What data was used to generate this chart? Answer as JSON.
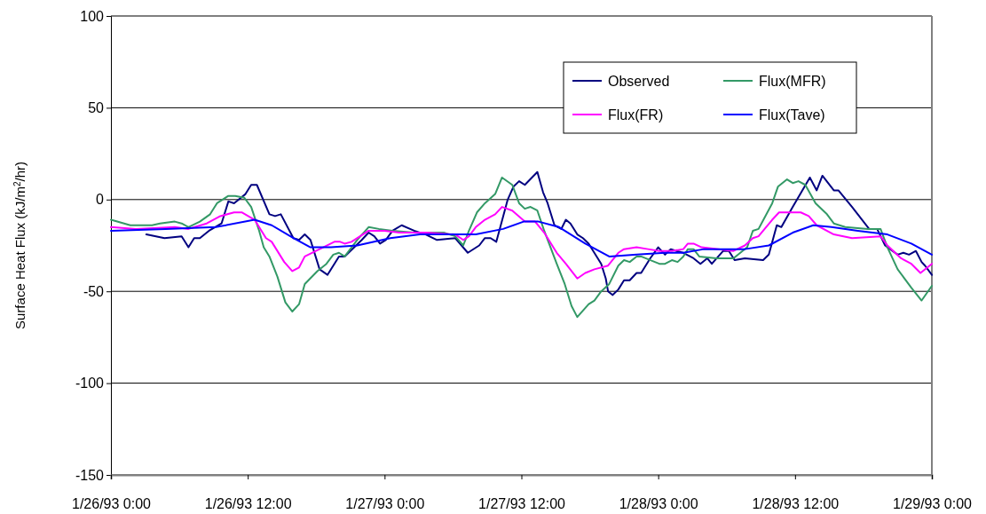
{
  "chart_data": {
    "type": "line",
    "ylabel": "Surface Heat Flux (kJ/m$^{2}$/hr)",
    "xlim": [
      "1993-01-26T00:00",
      "1993-01-29T00:00"
    ],
    "xticks": [
      {
        "value": "1993-01-26T00:00",
        "label": "1/26/93 0:00"
      },
      {
        "value": "1993-01-26T12:00",
        "label": "1/26/93 12:00"
      },
      {
        "value": "1993-01-27T00:00",
        "label": "1/27/93 0:00"
      },
      {
        "value": "1993-01-27T12:00",
        "label": "1/27/93 12:00"
      },
      {
        "value": "1993-01-28T00:00",
        "label": "1/28/93 0:00"
      },
      {
        "value": "1993-01-28T12:00",
        "label": "1/28/93 12:00"
      },
      {
        "value": "1993-01-29T00:00",
        "label": "1/29/93 0:00"
      }
    ],
    "ylim": [
      -150,
      100
    ],
    "yticks": [
      -150,
      -100,
      -50,
      0,
      50,
      100
    ],
    "grid": "y",
    "legend": "top right",
    "marker": "none",
    "line_style": "solid",
    "series": [
      {
        "name": "Observed",
        "color": "#000080",
        "x": [
          "1993-01-26T03:06",
          "1993-01-26T04:42",
          "1993-01-26T06:12",
          "1993-01-26T06:48",
          "1993-01-26T07:18",
          "1993-01-26T07:48",
          "1993-01-26T08:36",
          "1993-01-26T09:42",
          "1993-01-26T10:18",
          "1993-01-26T10:48",
          "1993-01-26T11:48",
          "1993-01-26T12:18",
          "1993-01-26T12:48",
          "1993-01-26T13:54",
          "1993-01-26T14:24",
          "1993-01-26T14:54",
          "1993-01-26T16:00",
          "1993-01-26T16:30",
          "1993-01-26T17:00",
          "1993-01-26T17:30",
          "1993-01-26T18:18",
          "1993-01-26T19:00",
          "1993-01-26T20:00",
          "1993-01-26T20:30",
          "1993-01-26T22:00",
          "1993-01-26T22:36",
          "1993-01-26T23:06",
          "1993-01-26T23:36",
          "1993-01-27T00:06",
          "1993-01-27T00:42",
          "1993-01-27T01:30",
          "1993-01-27T02:36",
          "1993-01-27T03:36",
          "1993-01-27T04:36",
          "1993-01-27T06:12",
          "1993-01-27T07:18",
          "1993-01-27T08:18",
          "1993-01-27T08:48",
          "1993-01-27T09:18",
          "1993-01-27T09:48",
          "1993-01-27T10:48",
          "1993-01-27T11:18",
          "1993-01-27T11:48",
          "1993-01-27T12:18",
          "1993-01-27T13:24",
          "1993-01-27T13:54",
          "1993-01-27T14:18",
          "1993-01-27T14:54",
          "1993-01-27T15:30",
          "1993-01-27T15:54",
          "1993-01-27T16:18",
          "1993-01-27T16:54",
          "1993-01-27T17:24",
          "1993-01-27T17:54",
          "1993-01-27T19:00",
          "1993-01-27T19:24",
          "1993-01-27T19:36",
          "1993-01-27T20:00",
          "1993-01-27T20:30",
          "1993-01-27T21:00",
          "1993-01-27T21:30",
          "1993-01-27T22:06",
          "1993-01-27T22:30",
          "1993-01-27T23:18",
          "1993-01-28T00:00",
          "1993-01-28T00:36",
          "1993-01-28T01:06",
          "1993-01-28T01:36",
          "1993-01-28T02:12",
          "1993-01-28T03:06",
          "1993-01-28T03:42",
          "1993-01-28T04:18",
          "1993-01-28T04:42",
          "1993-01-28T05:42",
          "1993-01-28T06:12",
          "1993-01-28T06:42",
          "1993-01-28T07:36",
          "1993-01-28T09:12",
          "1993-01-28T09:42",
          "1993-01-28T10:24",
          "1993-01-28T10:48",
          "1993-01-28T11:48",
          "1993-01-28T13:18",
          "1993-01-28T13:54",
          "1993-01-28T14:24",
          "1993-01-28T15:24",
          "1993-01-28T15:48",
          "1993-01-28T17:00",
          "1993-01-28T17:30",
          "1993-01-28T18:30",
          "1993-01-28T19:12",
          "1993-01-28T19:54",
          "1993-01-28T21:00",
          "1993-01-28T21:30",
          "1993-01-28T22:00",
          "1993-01-28T22:36",
          "1993-01-28T23:06",
          "1993-01-28T23:24",
          "1993-01-29T00:00"
        ],
        "values": [
          -19,
          -21,
          -20,
          -26,
          -21,
          -21,
          -17,
          -13,
          -1,
          -2,
          3,
          8,
          8,
          -8,
          -9,
          -8,
          -21,
          -22,
          -19,
          -22,
          -38,
          -41,
          -31,
          -31,
          -22,
          -18,
          -20,
          -24,
          -22,
          -17,
          -14,
          -17,
          -19,
          -22,
          -21,
          -29,
          -25,
          -21,
          -21,
          -23,
          0,
          7,
          10,
          8,
          15,
          4,
          -2,
          -14,
          -16,
          -11,
          -13,
          -19,
          -21,
          -24,
          -35,
          -43,
          -50,
          -52,
          -49,
          -44,
          -44,
          -40,
          -40,
          -32,
          -26,
          -30,
          -27,
          -28,
          -29,
          -32,
          -35,
          -32,
          -35,
          -28,
          -28,
          -33,
          -32,
          -33,
          -30,
          -14,
          -15,
          -4,
          12,
          5,
          13,
          5,
          5,
          -4,
          -8,
          -16,
          -16,
          -25,
          -30,
          -29,
          -30,
          -28,
          -34,
          -36,
          -41
        ]
      },
      {
        "name": "Flux(MFR)",
        "color": "#339966",
        "x": [
          "1993-01-26T00:00",
          "1993-01-26T01:42",
          "1993-01-26T03:36",
          "1993-01-26T04:18",
          "1993-01-26T05:36",
          "1993-01-26T06:12",
          "1993-01-26T06:48",
          "1993-01-26T07:48",
          "1993-01-26T08:42",
          "1993-01-26T09:18",
          "1993-01-26T10:18",
          "1993-01-26T10:54",
          "1993-01-26T11:42",
          "1993-01-26T12:18",
          "1993-01-26T13:00",
          "1993-01-26T13:24",
          "1993-01-26T13:54",
          "1993-01-26T14:36",
          "1993-01-26T15:18",
          "1993-01-26T15:54",
          "1993-01-26T16:30",
          "1993-01-26T17:00",
          "1993-01-26T18:06",
          "1993-01-26T18:54",
          "1993-01-26T19:30",
          "1993-01-26T20:00",
          "1993-01-26T20:30",
          "1993-01-26T21:36",
          "1993-01-26T22:36",
          "1993-01-26T23:30",
          "1993-01-27T00:42",
          "1993-01-27T02:36",
          "1993-01-27T05:12",
          "1993-01-27T06:12",
          "1993-01-27T06:54",
          "1993-01-27T07:24",
          "1993-01-27T08:06",
          "1993-01-27T08:48",
          "1993-01-27T09:42",
          "1993-01-27T10:18",
          "1993-01-27T11:12",
          "1993-01-27T11:48",
          "1993-01-27T12:18",
          "1993-01-27T12:48",
          "1993-01-27T13:24",
          "1993-01-27T14:00",
          "1993-01-27T15:06",
          "1993-01-27T15:48",
          "1993-01-27T16:24",
          "1993-01-27T16:54",
          "1993-01-27T17:54",
          "1993-01-27T18:24",
          "1993-01-27T19:00",
          "1993-01-27T19:42",
          "1993-01-27T20:30",
          "1993-01-27T21:00",
          "1993-01-27T21:30",
          "1993-01-27T22:06",
          "1993-01-27T22:30",
          "1993-01-28T00:06",
          "1993-01-28T00:36",
          "1993-01-28T01:12",
          "1993-01-28T01:42",
          "1993-01-28T02:12",
          "1993-01-28T02:36",
          "1993-01-28T03:06",
          "1993-01-28T03:36",
          "1993-01-28T05:06",
          "1993-01-28T06:36",
          "1993-01-28T07:48",
          "1993-01-28T08:18",
          "1993-01-28T08:48",
          "1993-01-28T10:00",
          "1993-01-28T10:30",
          "1993-01-28T11:18",
          "1993-01-28T11:48",
          "1993-01-28T12:18",
          "1993-01-28T12:54",
          "1993-01-28T13:48",
          "1993-01-28T14:48",
          "1993-01-28T15:24",
          "1993-01-28T16:24",
          "1993-01-28T18:24",
          "1993-01-28T19:30",
          "1993-01-28T20:06",
          "1993-01-28T21:00",
          "1993-01-28T22:12",
          "1993-01-28T23:06",
          "1993-01-29T00:00"
        ],
        "values": [
          -11,
          -14,
          -14,
          -13,
          -12,
          -13,
          -15,
          -12,
          -8,
          -2,
          2,
          2,
          1,
          -4,
          -17,
          -26,
          -31,
          -42,
          -56,
          -61,
          -57,
          -46,
          -39,
          -35,
          -30,
          -29,
          -31,
          -22,
          -15,
          -16,
          -17,
          -18,
          -18,
          -20,
          -25,
          -17,
          -7,
          -2,
          3,
          12,
          8,
          -2,
          -5,
          -4,
          -6,
          -17,
          -35,
          -46,
          -58,
          -64,
          -57,
          -55,
          -50,
          -46,
          -36,
          -33,
          -34,
          -31,
          -31,
          -35,
          -35,
          -33,
          -34,
          -31,
          -27,
          -27,
          -31,
          -32,
          -32,
          -26,
          -17,
          -16,
          -2,
          7,
          11,
          9,
          10,
          8,
          -2,
          -8,
          -13,
          -15,
          -16,
          -16,
          -26,
          -38,
          -48,
          -55,
          -47
        ]
      },
      {
        "name": "Flux(FR)",
        "color": "#ff00ff",
        "x": [
          "1993-01-26T00:00",
          "1993-01-26T02:12",
          "1993-01-26T05:36",
          "1993-01-26T06:48",
          "1993-01-26T08:24",
          "1993-01-26T09:36",
          "1993-01-26T10:48",
          "1993-01-26T11:30",
          "1993-01-26T12:36",
          "1993-01-26T13:36",
          "1993-01-26T14:06",
          "1993-01-26T15:12",
          "1993-01-26T15:54",
          "1993-01-26T16:30",
          "1993-01-26T17:00",
          "1993-01-26T18:18",
          "1993-01-26T19:36",
          "1993-01-26T20:06",
          "1993-01-26T20:30",
          "1993-01-26T21:06",
          "1993-01-26T22:36",
          "1993-01-27T00:00",
          "1993-01-27T01:18",
          "1993-01-27T03:36",
          "1993-01-27T06:12",
          "1993-01-27T06:54",
          "1993-01-27T07:24",
          "1993-01-27T08:00",
          "1993-01-27T08:48",
          "1993-01-27T09:42",
          "1993-01-27T10:18",
          "1993-01-27T11:12",
          "1993-01-27T12:18",
          "1993-01-27T13:12",
          "1993-01-27T14:00",
          "1993-01-27T15:06",
          "1993-01-27T15:54",
          "1993-01-27T16:54",
          "1993-01-27T17:36",
          "1993-01-27T18:24",
          "1993-01-27T19:36",
          "1993-01-27T20:30",
          "1993-01-27T21:00",
          "1993-01-27T22:06",
          "1993-01-27T23:06",
          "1993-01-28T00:06",
          "1993-01-28T01:12",
          "1993-01-28T02:12",
          "1993-01-28T02:36",
          "1993-01-28T03:06",
          "1993-01-28T03:48",
          "1993-01-28T06:36",
          "1993-01-28T07:36",
          "1993-01-28T08:18",
          "1993-01-28T08:48",
          "1993-01-28T10:00",
          "1993-01-28T10:36",
          "1993-01-28T11:24",
          "1993-01-28T11:54",
          "1993-01-28T12:30",
          "1993-01-28T13:12",
          "1993-01-28T13:54",
          "1993-01-28T15:24",
          "1993-01-28T17:00",
          "1993-01-28T19:30",
          "1993-01-28T20:06",
          "1993-01-28T21:18",
          "1993-01-28T22:12",
          "1993-01-28T23:00",
          "1993-01-29T00:00"
        ],
        "values": [
          -15,
          -16,
          -15,
          -16,
          -13,
          -9,
          -7,
          -7,
          -11,
          -21,
          -23,
          -34,
          -39,
          -37,
          -31,
          -27,
          -23,
          -23,
          -24,
          -23,
          -17,
          -17,
          -18,
          -18,
          -19,
          -22,
          -20,
          -15,
          -11,
          -8,
          -4,
          -6,
          -12,
          -12,
          -18,
          -29,
          -35,
          -43,
          -40,
          -38,
          -36,
          -29,
          -27,
          -26,
          -27,
          -28,
          -28,
          -27,
          -24,
          -24,
          -26,
          -28,
          -25,
          -21,
          -20,
          -11,
          -7,
          -7,
          -7,
          -7,
          -9,
          -14,
          -19,
          -21,
          -20,
          -25,
          -32,
          -35,
          -40,
          -35
        ]
      },
      {
        "name": "Flux(Tave)",
        "color": "#0000ff",
        "x": [
          "1993-01-26T00:00",
          "1993-01-26T04:48",
          "1993-01-26T09:12",
          "1993-01-26T12:36",
          "1993-01-26T14:06",
          "1993-01-26T16:00",
          "1993-01-26T17:30",
          "1993-01-26T19:18",
          "1993-01-26T21:36",
          "1993-01-27T00:30",
          "1993-01-27T03:06",
          "1993-01-27T08:00",
          "1993-01-27T10:24",
          "1993-01-27T12:12",
          "1993-01-27T13:30",
          "1993-01-27T15:18",
          "1993-01-27T17:36",
          "1993-01-27T19:42",
          "1993-01-27T22:06",
          "1993-01-28T00:36",
          "1993-01-28T02:12",
          "1993-01-28T04:00",
          "1993-01-28T07:36",
          "1993-01-28T09:42",
          "1993-01-28T11:48",
          "1993-01-28T13:36",
          "1993-01-28T15:12",
          "1993-01-28T17:30",
          "1993-01-28T20:06",
          "1993-01-28T22:12",
          "1993-01-29T00:00"
        ],
        "values": [
          -17,
          -16,
          -15,
          -11,
          -14,
          -21,
          -26,
          -26,
          -25,
          -21,
          -19,
          -19,
          -16,
          -12,
          -12,
          -15,
          -24,
          -31,
          -30,
          -29,
          -29,
          -27,
          -27,
          -25,
          -18,
          -14,
          -15,
          -17,
          -19,
          -24,
          -30
        ]
      }
    ]
  }
}
